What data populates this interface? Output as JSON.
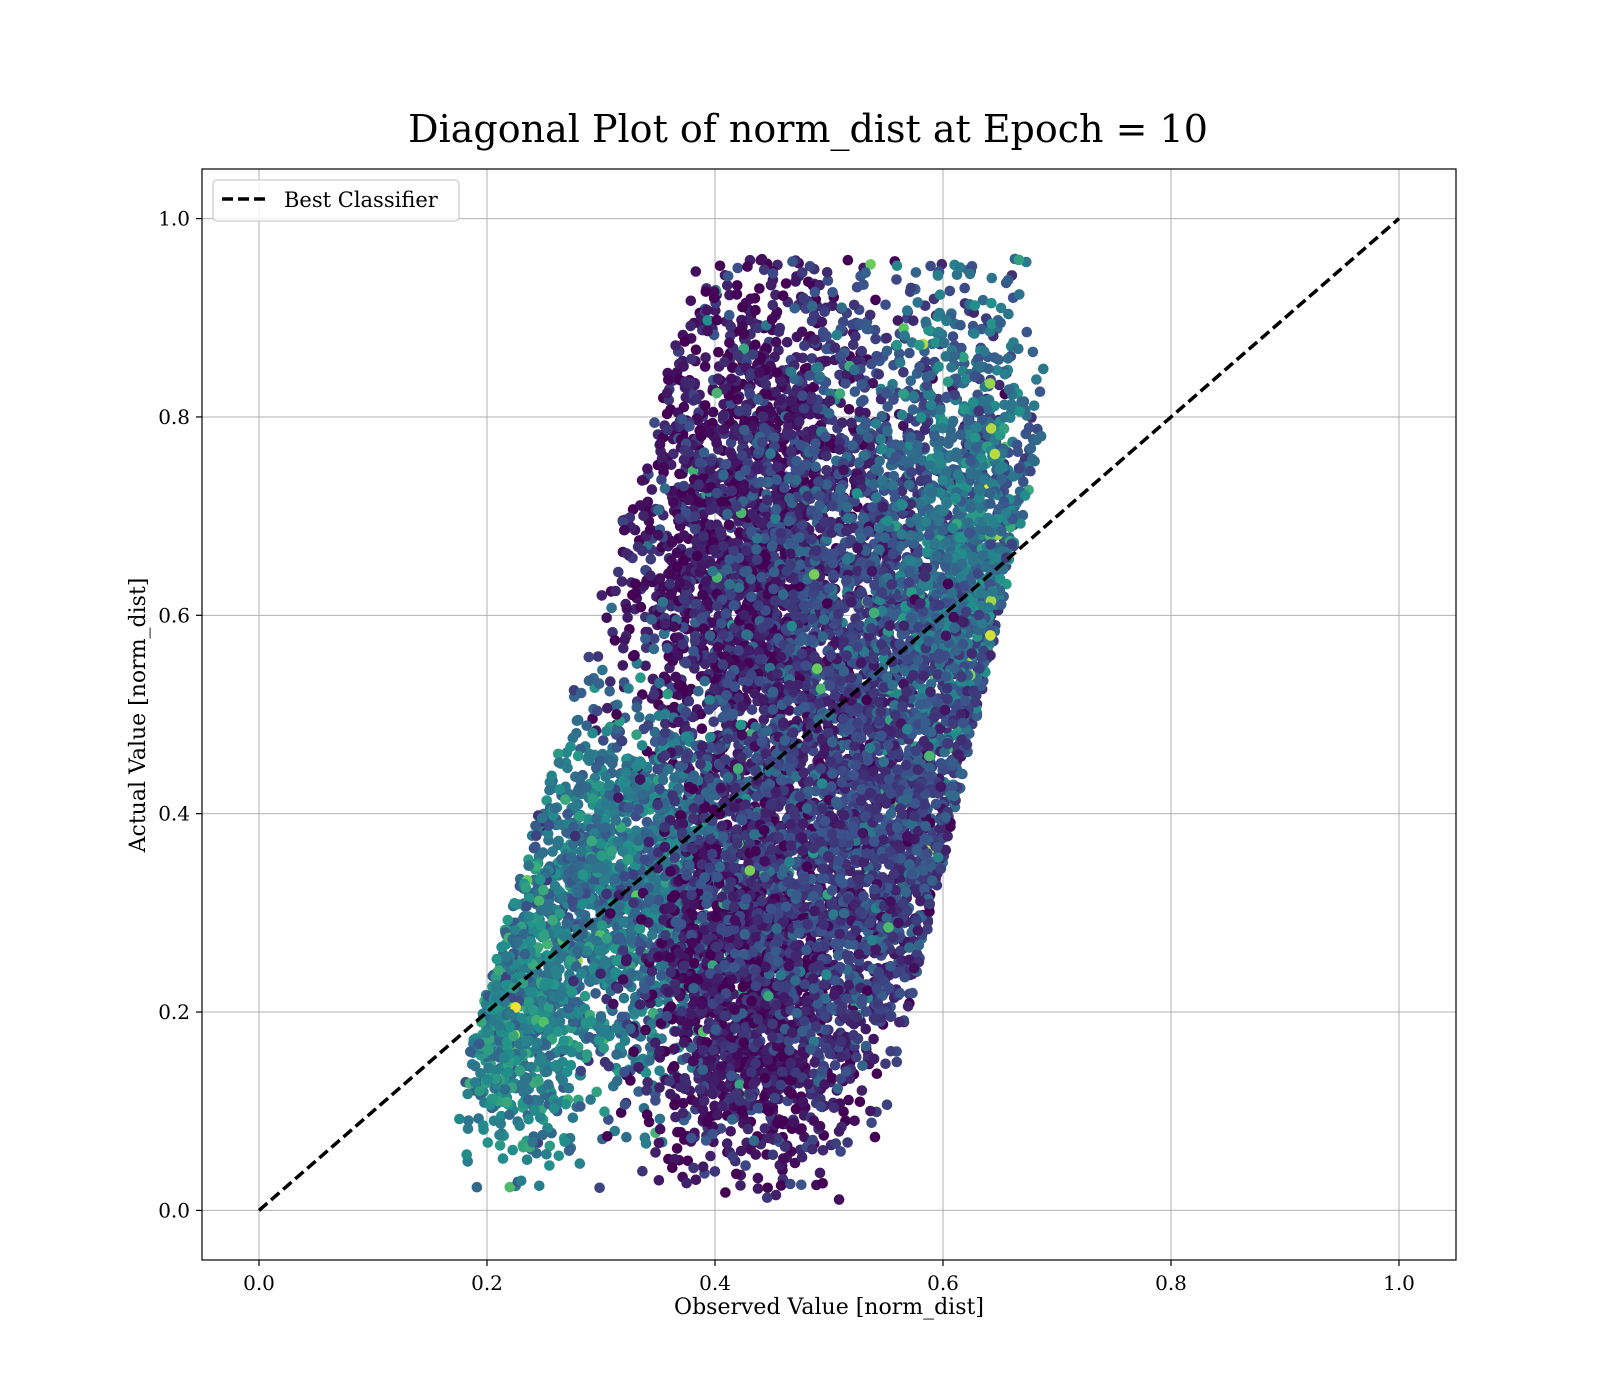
{
  "chart_data": {
    "type": "scatter",
    "title": "Diagonal Plot of norm_dist at Epoch = 10",
    "xlabel": "Observed Value [norm_dist]",
    "ylabel": "Actual Value [norm_dist]",
    "xlim": [
      -0.05,
      1.05
    ],
    "ylim": [
      -0.05,
      1.05
    ],
    "xticks": [
      "0.0",
      "0.2",
      "0.4",
      "0.6",
      "0.8",
      "1.0"
    ],
    "yticks": [
      "0.0",
      "0.2",
      "0.4",
      "0.6",
      "0.8",
      "1.0"
    ],
    "grid": true,
    "colormap": "viridis",
    "colormap_stops": [
      "#440154",
      "#3b528b",
      "#21918c",
      "#5ec962",
      "#fde725"
    ],
    "legend": {
      "placement": "upper-left",
      "entries": [
        {
          "label": "Best Classifier",
          "style": "dashed",
          "color": "#000000"
        }
      ]
    },
    "reference_line": {
      "name": "Best Classifier",
      "x": [
        0.0,
        1.0
      ],
      "y": [
        0.0,
        1.0
      ],
      "style": "dashed",
      "color": "#000000"
    },
    "point_cloud_clusters": [
      {
        "cx": 0.43,
        "cy": 0.66,
        "sx": 0.055,
        "sy": 0.15,
        "count": 2600,
        "hue": 0.08
      },
      {
        "cx": 0.55,
        "cy": 0.6,
        "sx": 0.07,
        "sy": 0.17,
        "count": 2200,
        "hue": 0.22
      },
      {
        "cx": 0.62,
        "cy": 0.65,
        "sx": 0.04,
        "sy": 0.13,
        "count": 1200,
        "hue": 0.38
      },
      {
        "cx": 0.32,
        "cy": 0.33,
        "sx": 0.06,
        "sy": 0.09,
        "count": 1800,
        "hue": 0.38
      },
      {
        "cx": 0.22,
        "cy": 0.2,
        "sx": 0.035,
        "sy": 0.07,
        "count": 900,
        "hue": 0.45
      },
      {
        "cx": 0.43,
        "cy": 0.22,
        "sx": 0.045,
        "sy": 0.1,
        "count": 1400,
        "hue": 0.06
      },
      {
        "cx": 0.5,
        "cy": 0.33,
        "sx": 0.07,
        "sy": 0.12,
        "count": 1500,
        "hue": 0.18
      },
      {
        "cx": 0.58,
        "cy": 0.38,
        "sx": 0.055,
        "sy": 0.12,
        "count": 900,
        "hue": 0.2
      }
    ]
  }
}
